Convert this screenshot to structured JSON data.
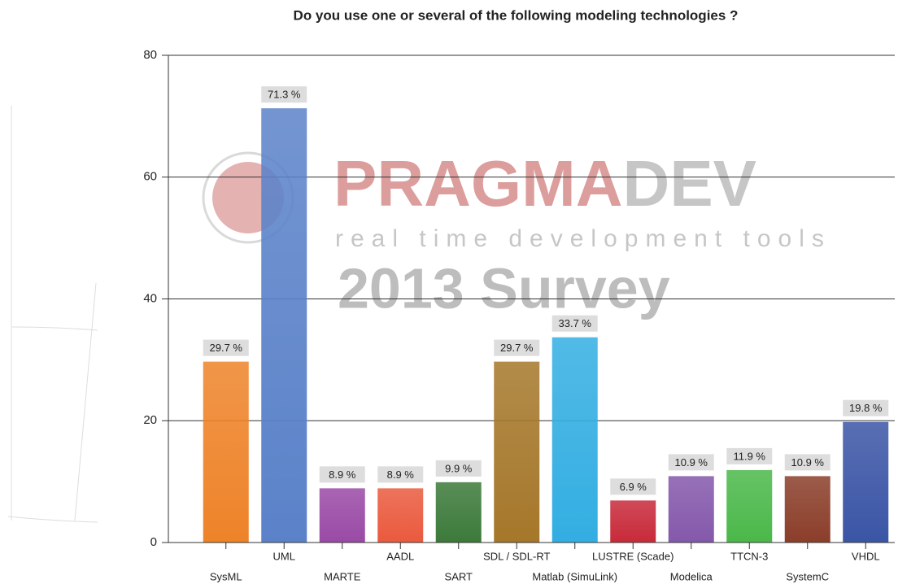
{
  "chart_data": {
    "type": "bar",
    "title": "Do you use one or several of the following modeling technologies ?",
    "categories": [
      "SysML",
      "UML",
      "MARTE",
      "AADL",
      "SART",
      "SDL / SDL-RT",
      "Matlab (SimuLink)",
      "LUSTRE (Scade)",
      "Modelica",
      "TTCN-3",
      "SystemC",
      "VHDL"
    ],
    "values": [
      29.7,
      71.3,
      8.9,
      8.9,
      9.9,
      29.7,
      33.7,
      6.9,
      10.9,
      11.9,
      10.9,
      19.8
    ],
    "value_labels": [
      "29.7 %",
      "71.3 %",
      "8.9 %",
      "8.9 %",
      "9.9 %",
      "29.7 %",
      "33.7 %",
      "6.9 %",
      "10.9 %",
      "11.9 %",
      "10.9 %",
      "19.8 %"
    ],
    "colors": [
      "#ee8329",
      "#5b82c9",
      "#9a4aa6",
      "#ea5a3e",
      "#3c7a3a",
      "#a5772a",
      "#33aee2",
      "#c82a3a",
      "#8458ab",
      "#4bb84a",
      "#8b3e2a",
      "#3b55a6"
    ],
    "ylim": [
      0,
      80
    ],
    "yticks": [
      0,
      20,
      40,
      60,
      80
    ],
    "grid": true,
    "watermark": {
      "brand_a": "PRAGMA",
      "brand_b": "DEV",
      "tagline": "real time development tools",
      "survey": "2013 Survey"
    }
  }
}
